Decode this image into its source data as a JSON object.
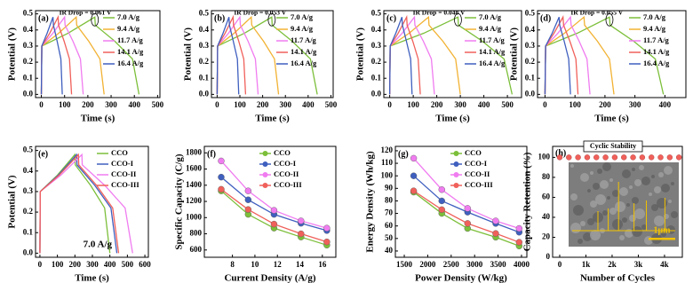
{
  "chart_data": [
    {
      "type": "line",
      "label": "(a)",
      "x_label": "Time (s)",
      "y_label": "Potential (V)",
      "annotation": "IR Drop = 0.061 V",
      "xlim": [
        -25,
        510
      ],
      "xticks": [
        0,
        100,
        200,
        300,
        400,
        500
      ],
      "ylim": [
        -0.02,
        0.52
      ],
      "yticks": [
        {
          "value": 0,
          "label": "0.0"
        },
        0.1,
        0.2,
        0.3,
        0.4,
        0.5
      ],
      "legend": "upper right",
      "series": [
        {
          "name": "7.0 A/g",
          "color": "#7cbf3a",
          "x": [
            0,
            2,
            115,
            230,
            232,
            316,
            392,
            420
          ],
          "values": [
            0,
            0.3,
            0.38,
            0.48,
            0.43,
            0.33,
            0.22,
            0
          ]
        },
        {
          "name": "9.4 A/g",
          "color": "#f2b233",
          "x": [
            0,
            2,
            75,
            150,
            152,
            204,
            252,
            270
          ],
          "values": [
            0,
            0.3,
            0.38,
            0.48,
            0.43,
            0.33,
            0.22,
            0
          ]
        },
        {
          "name": "11.7 A/g",
          "color": "#f07cf0",
          "x": [
            0,
            2,
            50,
            100,
            102,
            136,
            168,
            180
          ],
          "values": [
            0,
            0.3,
            0.38,
            0.48,
            0.43,
            0.33,
            0.22,
            0
          ]
        },
        {
          "name": "14.1 A/g",
          "color": "#f0605a",
          "x": [
            0,
            2,
            36,
            72,
            74,
            98,
            121,
            130
          ],
          "values": [
            0,
            0.3,
            0.38,
            0.48,
            0.43,
            0.33,
            0.22,
            0
          ]
        },
        {
          "name": "16.4 A/g",
          "color": "#3f5fbf",
          "x": [
            0,
            2,
            25,
            50,
            52,
            68,
            84,
            90
          ],
          "values": [
            0,
            0.3,
            0.38,
            0.48,
            0.43,
            0.33,
            0.22,
            0
          ]
        }
      ]
    },
    {
      "type": "line",
      "label": "(b)",
      "x_label": "Time (s)",
      "y_label": "Potential (V)",
      "annotation": "IR Drop = 0.053 V",
      "xlim": [
        -25,
        510
      ],
      "xticks": [
        0,
        100,
        200,
        300,
        400,
        500
      ],
      "ylim": [
        -0.02,
        0.52
      ],
      "yticks": [
        {
          "value": 0,
          "label": "0.0"
        },
        0.1,
        0.2,
        0.3,
        0.4,
        0.5
      ],
      "legend": "upper right",
      "series": [
        {
          "name": "7.0 A/g",
          "color": "#7cbf3a",
          "x": [
            0,
            2,
            120,
            240,
            242,
            330,
            410,
            440
          ],
          "values": [
            0,
            0.3,
            0.38,
            0.48,
            0.43,
            0.33,
            0.22,
            0
          ]
        },
        {
          "name": "9.4 A/g",
          "color": "#f2b233",
          "x": [
            0,
            2,
            75,
            150,
            152,
            204,
            252,
            270
          ],
          "values": [
            0,
            0.3,
            0.38,
            0.48,
            0.43,
            0.33,
            0.22,
            0
          ]
        },
        {
          "name": "11.7 A/g",
          "color": "#f07cf0",
          "x": [
            0,
            2,
            50,
            100,
            102,
            136,
            168,
            180
          ],
          "values": [
            0,
            0.3,
            0.38,
            0.48,
            0.43,
            0.33,
            0.22,
            0
          ]
        },
        {
          "name": "14.1 A/g",
          "color": "#f0605a",
          "x": [
            0,
            2,
            35,
            70,
            72,
            95,
            117,
            125
          ],
          "values": [
            0,
            0.3,
            0.38,
            0.48,
            0.43,
            0.33,
            0.22,
            0
          ]
        },
        {
          "name": "16.4 A/g",
          "color": "#3f5fbf",
          "x": [
            0,
            2,
            26,
            52,
            54,
            71,
            89,
            95
          ],
          "values": [
            0,
            0.3,
            0.38,
            0.48,
            0.43,
            0.33,
            0.22,
            0
          ]
        }
      ]
    },
    {
      "type": "line",
      "label": "(c)",
      "x_label": "Time (s)",
      "y_label": "Potential (V)",
      "annotation": "IR Drop = 0.048 V",
      "xlim": [
        -25,
        560
      ],
      "xticks": [
        0,
        100,
        200,
        300,
        400,
        500
      ],
      "ylim": [
        -0.02,
        0.52
      ],
      "yticks": [
        {
          "value": 0,
          "label": "0.0"
        },
        0.1,
        0.2,
        0.3,
        0.4,
        0.5
      ],
      "legend": "upper right",
      "series": [
        {
          "name": "7.0 A/g",
          "color": "#7cbf3a",
          "x": [
            0,
            2,
            145,
            290,
            292,
            394,
            486,
            520
          ],
          "values": [
            0,
            0.3,
            0.38,
            0.48,
            0.43,
            0.33,
            0.22,
            0
          ]
        },
        {
          "name": "9.4 A/g",
          "color": "#f2b233",
          "x": [
            0,
            2,
            83,
            165,
            167,
            226,
            280,
            300
          ],
          "values": [
            0,
            0.3,
            0.38,
            0.48,
            0.43,
            0.33,
            0.22,
            0
          ]
        },
        {
          "name": "11.7 A/g",
          "color": "#f07cf0",
          "x": [
            0,
            2,
            53,
            105,
            107,
            143,
            177,
            190
          ],
          "values": [
            0,
            0.3,
            0.38,
            0.48,
            0.43,
            0.33,
            0.22,
            0
          ]
        },
        {
          "name": "14.1 A/g",
          "color": "#f0605a",
          "x": [
            0,
            2,
            36,
            72,
            74,
            98,
            121,
            130
          ],
          "values": [
            0,
            0.3,
            0.38,
            0.48,
            0.43,
            0.33,
            0.22,
            0
          ]
        },
        {
          "name": "16.4 A/g",
          "color": "#3f5fbf",
          "x": [
            0,
            2,
            26,
            52,
            54,
            71,
            89,
            95
          ],
          "values": [
            0,
            0.3,
            0.38,
            0.48,
            0.43,
            0.33,
            0.22,
            0
          ]
        }
      ]
    },
    {
      "type": "line",
      "label": "(d)",
      "x_label": "Time (s)",
      "y_label": "Potential (V)",
      "annotation": "IR Drop = 0.055 V",
      "xlim": [
        -25,
        470
      ],
      "xticks": [
        0,
        100,
        200,
        300,
        400
      ],
      "ylim": [
        -0.02,
        0.52
      ],
      "yticks": [
        {
          "value": 0,
          "label": "0.0"
        },
        0.1,
        0.2,
        0.3,
        0.4,
        0.5
      ],
      "legend": "upper right",
      "series": [
        {
          "name": "7.0 A/g",
          "color": "#7cbf3a",
          "x": [
            0,
            2,
            108,
            215,
            217,
            296,
            368,
            395
          ],
          "values": [
            0,
            0.3,
            0.38,
            0.48,
            0.43,
            0.33,
            0.22,
            0
          ]
        },
        {
          "name": "9.4 A/g",
          "color": "#f2b233",
          "x": [
            0,
            2,
            65,
            130,
            132,
            175,
            215,
            230
          ],
          "values": [
            0,
            0.3,
            0.38,
            0.48,
            0.43,
            0.33,
            0.22,
            0
          ]
        },
        {
          "name": "11.7 A/g",
          "color": "#f07cf0",
          "x": [
            0,
            2,
            43,
            85,
            87,
            114,
            140,
            150
          ],
          "values": [
            0,
            0.3,
            0.38,
            0.48,
            0.43,
            0.33,
            0.22,
            0
          ]
        },
        {
          "name": "14.1 A/g",
          "color": "#f0605a",
          "x": [
            0,
            2,
            30,
            60,
            62,
            83,
            103,
            110
          ],
          "values": [
            0,
            0.3,
            0.38,
            0.48,
            0.43,
            0.33,
            0.22,
            0
          ]
        },
        {
          "name": "16.4 A/g",
          "color": "#3f5fbf",
          "x": [
            0,
            2,
            24,
            47,
            49,
            64,
            79,
            85
          ],
          "values": [
            0,
            0.3,
            0.38,
            0.48,
            0.43,
            0.33,
            0.22,
            0
          ]
        }
      ]
    },
    {
      "type": "line",
      "label": "(e)",
      "x_label": "Time (s)",
      "y_label": "Potential (V)",
      "annotation": "7.0 A/g",
      "xlim": [
        -25,
        620
      ],
      "xticks": [
        0,
        100,
        200,
        300,
        400,
        500,
        600
      ],
      "ylim": [
        -0.02,
        0.52
      ],
      "yticks": [
        {
          "value": 0,
          "label": "0.0"
        },
        0.1,
        0.2,
        0.3,
        0.4,
        0.5
      ],
      "legend": "upper right",
      "series": [
        {
          "name": "CCO",
          "color": "#7cbf3a",
          "x": [
            0,
            2,
            100,
            200,
            202,
            290,
            370,
            400
          ],
          "values": [
            0,
            0.3,
            0.38,
            0.48,
            0.43,
            0.33,
            0.22,
            0
          ]
        },
        {
          "name": "CCO-I",
          "color": "#3f5fbf",
          "x": [
            0,
            2,
            105,
            210,
            212,
            314,
            406,
            440
          ],
          "values": [
            0,
            0.3,
            0.38,
            0.48,
            0.43,
            0.33,
            0.22,
            0
          ]
        },
        {
          "name": "CCO-II",
          "color": "#f07cf0",
          "x": [
            0,
            2,
            120,
            240,
            242,
            371,
            487,
            530
          ],
          "values": [
            0,
            0.3,
            0.38,
            0.48,
            0.43,
            0.33,
            0.22,
            0
          ]
        },
        {
          "name": "CCO-III",
          "color": "#f0605a",
          "x": [
            0,
            2,
            110,
            220,
            222,
            324,
            416,
            450
          ],
          "values": [
            0,
            0.3,
            0.38,
            0.48,
            0.43,
            0.33,
            0.22,
            0
          ]
        }
      ]
    },
    {
      "type": "line",
      "label": "(f)",
      "x_label": "Current Density (A/g)",
      "y_label": "Specific Capacity (C/g)",
      "markers": true,
      "x": [
        7.0,
        9.4,
        11.7,
        14.1,
        16.4
      ],
      "xlim": [
        5.5,
        17.2
      ],
      "xticks": [
        8,
        10,
        12,
        14,
        16
      ],
      "ylim": [
        510,
        1880
      ],
      "yticks": [
        600,
        800,
        1000,
        1200,
        1400,
        1600,
        1800
      ],
      "legend": "upper right",
      "series": [
        {
          "name": "CCO",
          "color": "#7cbf3a",
          "values": [
            1330,
            1040,
            870,
            760,
            660
          ]
        },
        {
          "name": "CCO-I",
          "color": "#3f5fbf",
          "values": [
            1500,
            1220,
            1040,
            930,
            840
          ]
        },
        {
          "name": "CCO-II",
          "color": "#f07cf0",
          "values": [
            1700,
            1330,
            1090,
            960,
            870
          ]
        },
        {
          "name": "CCO-III",
          "color": "#f0605a",
          "values": [
            1350,
            1100,
            920,
            800,
            700
          ]
        }
      ]
    },
    {
      "type": "line",
      "label": "(g)",
      "x_label": "Power Density (W/kg)",
      "y_label": "Energy Density (Wh/kg)",
      "markers": true,
      "x": [
        1700,
        2300,
        2850,
        3450,
        3950
      ],
      "xlim": [
        1310,
        4114
      ],
      "xticks": [
        1500,
        2000,
        2500,
        3000,
        3500,
        4000
      ],
      "ylim": [
        35,
        123.5
      ],
      "yticks": [
        40,
        50,
        60,
        70,
        80,
        90,
        100,
        110,
        120
      ],
      "legend": "upper right",
      "series": [
        {
          "name": "CCO",
          "color": "#7cbf3a",
          "values": [
            87,
            70,
            58,
            51,
            44
          ]
        },
        {
          "name": "CCO-I",
          "color": "#3f5fbf",
          "values": [
            100,
            80,
            71,
            62,
            55
          ]
        },
        {
          "name": "CCO-II",
          "color": "#f07cf0",
          "values": [
            114,
            89,
            74,
            64,
            58
          ]
        },
        {
          "name": "CCO-III",
          "color": "#f0605a",
          "values": [
            88,
            73,
            62,
            54,
            47
          ]
        }
      ]
    },
    {
      "type": "scatter",
      "label": "(h)",
      "x_label": "Number of Cycles",
      "y_label": "Capacity Retention (%)",
      "annotation": "Cyclic Stability",
      "inset_label": "1μm",
      "xlim": [
        -270,
        4680
      ],
      "xticks": [
        0,
        {
          "value": 1000,
          "label": "1k"
        },
        {
          "value": 2000,
          "label": "2k"
        },
        {
          "value": 3000,
          "label": "3k"
        },
        {
          "value": 4000,
          "label": "4k"
        }
      ],
      "ylim": [
        0,
        111
      ],
      "yticks": [
        0,
        20,
        40,
        60,
        80,
        100
      ],
      "series": [
        {
          "color": "#f0605a",
          "x": [
            0,
            350,
            700,
            1050,
            1400,
            1750,
            2100,
            2450,
            2800,
            3150,
            3500,
            3850,
            4200,
            4550
          ],
          "values": [
            100,
            100,
            100,
            100,
            100,
            100,
            100,
            100,
            100,
            100,
            100,
            100,
            100,
            100
          ]
        }
      ]
    }
  ]
}
